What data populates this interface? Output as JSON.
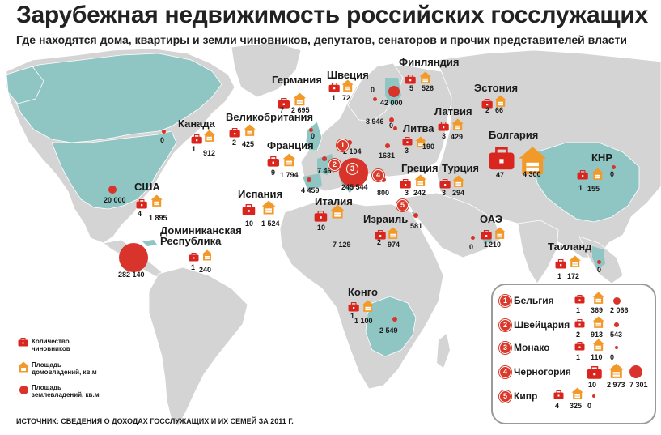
{
  "title": "Зарубежная недвижимость российских госслужащих",
  "subtitle": "Где находятся дома, квартиры и земли чиновников, депутатов, сенаторов и прочих представителей власти",
  "colors": {
    "sea": "#ffffff",
    "land": "#d4d4d4",
    "highlight": "#8fc6c4",
    "marker": "#d9342b",
    "icon_officials": "#d9251d",
    "icon_house": "#f19a2a"
  },
  "countries": [
    {
      "id": "usa",
      "name": "США",
      "officials": "4",
      "homes": "1 895",
      "land": "20 000"
    },
    {
      "id": "canada",
      "name": "Канада",
      "officials": "1",
      "homes": "912",
      "land": "0"
    },
    {
      "id": "dominican",
      "name": "Доминиканская Республика",
      "name_line1": "Доминиканская",
      "name_line2": "Республика",
      "officials": "1",
      "homes": "240",
      "land": "282 140"
    },
    {
      "id": "uk",
      "name": "Великобритания",
      "officials": "2",
      "homes": "425",
      "land": "0"
    },
    {
      "id": "france",
      "name": "Франция",
      "officials": "9",
      "homes": "1 794",
      "land": "7 467"
    },
    {
      "id": "spain",
      "name": "Испания",
      "officials": "10",
      "homes": "1 524",
      "land": "4 459"
    },
    {
      "id": "germany",
      "name": "Германия",
      "officials": "7",
      "homes": "2 695",
      "land": "2 104"
    },
    {
      "id": "sweden",
      "name": "Швеция",
      "officials": "1",
      "homes": "72",
      "land": "0"
    },
    {
      "id": "finland",
      "name": "Финляндия",
      "officials": "5",
      "homes": "526",
      "land": "42 000"
    },
    {
      "id": "estonia",
      "name": "Эстония",
      "officials": "2",
      "homes": "66",
      "land": "8 946"
    },
    {
      "id": "latvia",
      "name": "Латвия",
      "officials": "3",
      "homes": "429",
      "land": "0"
    },
    {
      "id": "lithuania",
      "name": "Литва",
      "officials": "3",
      "homes": "190",
      "land": "1631"
    },
    {
      "id": "bulgaria",
      "name": "Болгария",
      "officials": "47",
      "homes": "4 300",
      "land": "245 544"
    },
    {
      "id": "greece",
      "name": "Греция",
      "officials": "3",
      "homes": "242",
      "land": "800"
    },
    {
      "id": "turkey",
      "name": "Турция",
      "officials": "3",
      "homes": "294",
      "land": ""
    },
    {
      "id": "italy",
      "name": "Италия",
      "officials": "10",
      "homes": "7 129",
      "land": ""
    },
    {
      "id": "israel",
      "name": "Израиль",
      "officials": "2",
      "homes": "974",
      "land": "581"
    },
    {
      "id": "uae",
      "name": "ОАЭ",
      "officials": "1",
      "homes": "210",
      "land": "0"
    },
    {
      "id": "china",
      "name": "КНР",
      "officials": "1",
      "homes": "155",
      "land": "0"
    },
    {
      "id": "thailand",
      "name": "Таиланд",
      "officials": "1",
      "homes": "172",
      "land": "0"
    },
    {
      "id": "congo",
      "name": "Конго",
      "officials": "1",
      "homes": "1 100",
      "land": "2 549"
    }
  ],
  "inset": [
    {
      "num": "1",
      "name": "Бельгия",
      "officials": "1",
      "homes": "369",
      "land": "2 066"
    },
    {
      "num": "2",
      "name": "Швейцария",
      "officials": "2",
      "homes": "913",
      "land": "543"
    },
    {
      "num": "3",
      "name": "Монако",
      "officials": "1",
      "homes": "110",
      "land": "0"
    },
    {
      "num": "4",
      "name": "Черногория",
      "officials": "10",
      "homes": "2 973",
      "land": "7 301"
    },
    {
      "num": "5",
      "name": "Кипр",
      "officials": "4",
      "homes": "325",
      "land": "0"
    }
  ],
  "legend": {
    "officials": "Количество чиновников",
    "officials_l1": "Количество",
    "officials_l2": "чиновников",
    "homes": "Площадь домовладений, кв.м",
    "homes_l1": "Площадь",
    "homes_l2": "домовладений, кв.м",
    "land": "Площадь землевладений, кв.м",
    "land_l1": "Площадь",
    "land_l2": "землевладений, кв.м"
  },
  "source": "ИСТОЧНИК: СВЕДЕНИЯ О ДОХОДАХ ГОССЛУЖАЩИХ И ИХ СЕМЕЙ ЗА 2011 Г."
}
